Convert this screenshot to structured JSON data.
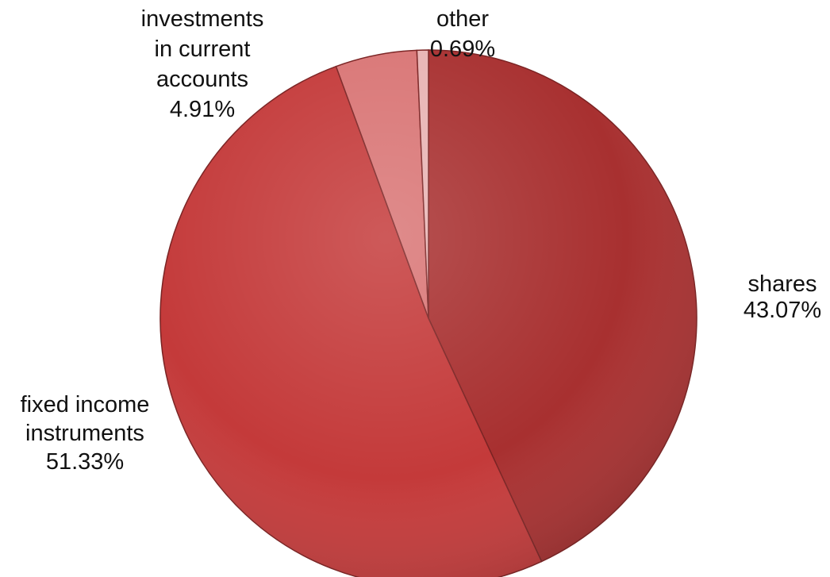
{
  "chart_data": {
    "type": "pie",
    "title": "",
    "start_angle_deg": 0,
    "direction": "clockwise",
    "slices": [
      {
        "label": [
          "shares"
        ],
        "value": 43.07,
        "value_label": "43.07%",
        "color": "#a83030"
      },
      {
        "label": [
          "fixed income",
          "instruments"
        ],
        "value": 51.33,
        "value_label": "51.33%",
        "color": "#c43a3a"
      },
      {
        "label": [
          "investments",
          "in current",
          "accounts"
        ],
        "value": 4.91,
        "value_label": "4.91%",
        "color": "#d97575"
      },
      {
        "label": [
          "other"
        ],
        "value": 0.69,
        "value_label": "0.69%",
        "color": "#e8b4b4"
      }
    ]
  }
}
